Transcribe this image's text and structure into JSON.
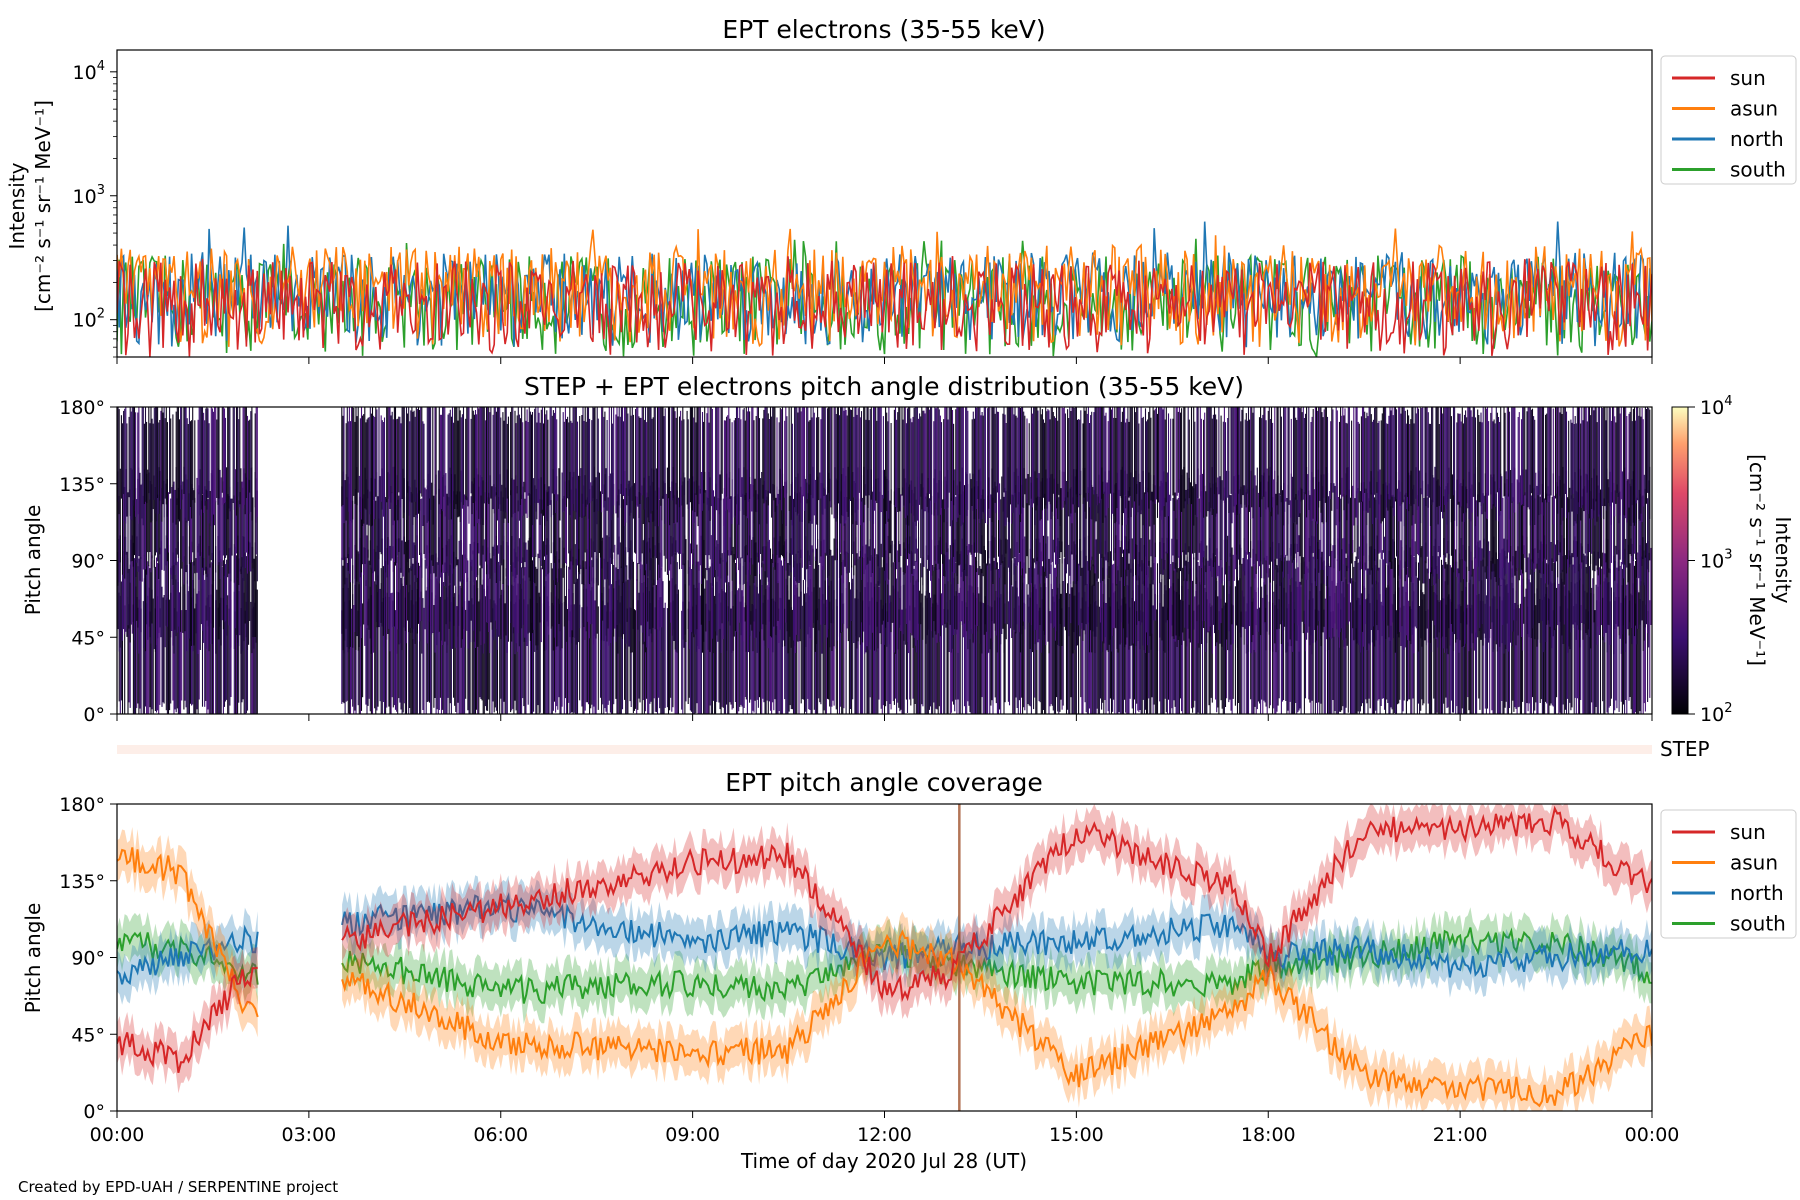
{
  "footer": "Created by EPD-UAH / SERPENTINE project",
  "x_axis": {
    "label": "Time of day 2020 Jul 28 (UT)",
    "ticks": [
      "00:00",
      "03:00",
      "06:00",
      "09:00",
      "12:00",
      "15:00",
      "18:00",
      "21:00",
      "00:00"
    ],
    "range_hours": [
      0,
      24
    ]
  },
  "colors": {
    "sun": "#d62728",
    "asun": "#ff7f0e",
    "north": "#1f77b4",
    "south": "#2ca02c"
  },
  "chart_data": [
    {
      "type": "line",
      "title": "EPT electrons (35-55 keV)",
      "ylabel": "Intensity",
      "yunits": "[cm⁻² s⁻¹ sr⁻¹ MeV⁻¹]",
      "yscale": "log",
      "ylim": [
        50,
        15000
      ],
      "yticks": [
        {
          "base": "10",
          "exp": "2",
          "value": 100
        },
        {
          "base": "10",
          "exp": "3",
          "value": 1000
        },
        {
          "base": "10",
          "exp": "4",
          "value": 10000
        }
      ],
      "legend": [
        "sun",
        "asun",
        "north",
        "south"
      ],
      "legend_position": "outside-right",
      "series": [
        {
          "name": "sun",
          "typical_range": [
            50,
            300
          ],
          "peak": 330
        },
        {
          "name": "asun",
          "typical_range": [
            60,
            400
          ],
          "peak": 550
        },
        {
          "name": "north",
          "typical_range": [
            60,
            350
          ],
          "peak": 620
        },
        {
          "name": "south",
          "typical_range": [
            50,
            330
          ],
          "peak": 470
        }
      ]
    },
    {
      "type": "heatmap",
      "title": "STEP + EPT electrons pitch angle distribution (35-55 keV)",
      "ylabel": "Pitch angle",
      "yticks": [
        "0°",
        "45°",
        "90°",
        "135°",
        "180°"
      ],
      "ylim": [
        0,
        180
      ],
      "colorbar": {
        "label": "Intensity",
        "units": "[cm⁻² s⁻¹ sr⁻¹ MeV⁻¹]",
        "scale": "log",
        "range": [
          100,
          10000
        ],
        "ticks": [
          {
            "base": "10",
            "exp": "2"
          },
          {
            "base": "10",
            "exp": "3"
          },
          {
            "base": "10",
            "exp": "4"
          }
        ]
      },
      "data_gap_hours": [
        2.2,
        3.5
      ]
    },
    {
      "type": "line",
      "label": "STEP",
      "note": "STEP coverage strip (empty)"
    },
    {
      "type": "line",
      "title": "EPT pitch angle coverage",
      "ylabel": "Pitch angle",
      "yticks": [
        "0°",
        "45°",
        "90°",
        "135°",
        "180°"
      ],
      "ylim": [
        0,
        180
      ],
      "legend": [
        "sun",
        "asun",
        "north",
        "south"
      ],
      "legend_position": "outside-right",
      "data_gap_hours": [
        2.2,
        3.5
      ],
      "series": [
        {
          "name": "sun",
          "x": [
            0,
            1,
            2,
            3.5,
            6,
            9,
            10.5,
            12,
            13,
            15,
            17.5,
            18,
            19.5,
            21,
            22.5,
            24
          ],
          "values": [
            40,
            30,
            80,
            100,
            120,
            145,
            150,
            70,
            80,
            165,
            130,
            90,
            165,
            165,
            170,
            130
          ]
        },
        {
          "name": "asun",
          "x": [
            0,
            1,
            2,
            3.5,
            6,
            9,
            10.5,
            12,
            13,
            15,
            17.5,
            18,
            19.5,
            21,
            22.5,
            24
          ],
          "values": [
            150,
            140,
            60,
            80,
            40,
            35,
            35,
            100,
            90,
            20,
            60,
            80,
            20,
            15,
            10,
            45
          ]
        },
        {
          "name": "north",
          "x": [
            0,
            1,
            2,
            3.5,
            6,
            9,
            10.5,
            12,
            13,
            15,
            17.5,
            18,
            19.5,
            21,
            22.5,
            24
          ],
          "values": [
            80,
            90,
            100,
            110,
            120,
            100,
            105,
            90,
            95,
            100,
            110,
            90,
            95,
            85,
            90,
            95
          ]
        },
        {
          "name": "south",
          "x": [
            0,
            1,
            2,
            3.5,
            6,
            9,
            10.5,
            12,
            13,
            15,
            17.5,
            18,
            19.5,
            21,
            22.5,
            24
          ],
          "values": [
            100,
            95,
            80,
            90,
            70,
            75,
            70,
            95,
            85,
            75,
            75,
            85,
            90,
            100,
            100,
            80
          ]
        }
      ]
    }
  ]
}
